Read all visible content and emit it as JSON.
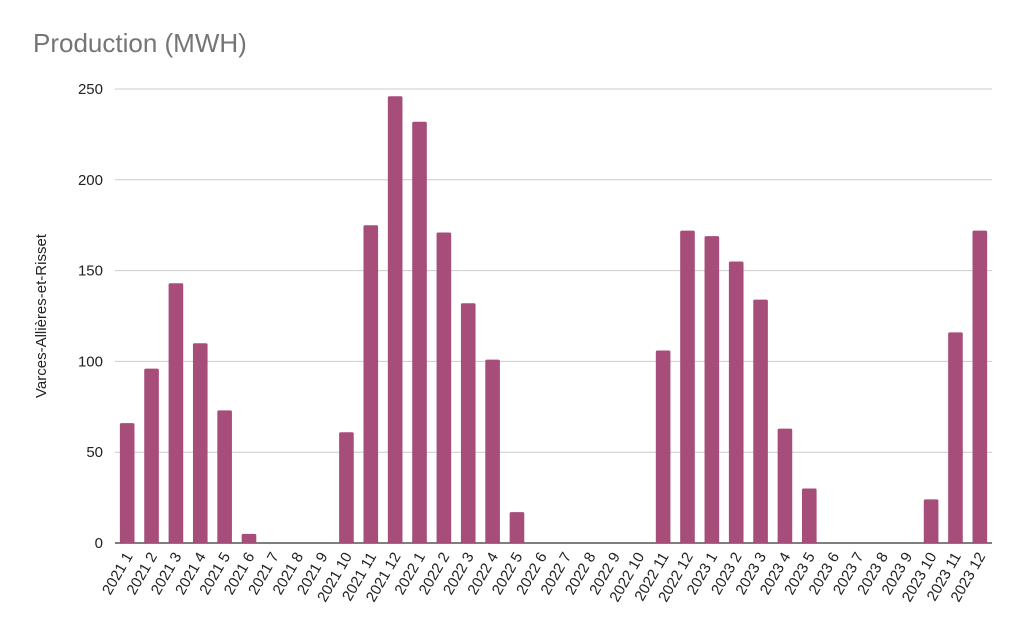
{
  "chart_data": {
    "type": "bar",
    "title": "Production (MWH)",
    "xlabel": "",
    "ylabel": "Varces-Allières-et-Risset",
    "ylim": [
      0,
      250
    ],
    "yticks": [
      0,
      50,
      100,
      150,
      200,
      250
    ],
    "grid": true,
    "bar_color": "#a64d79",
    "categories": [
      "2021 1",
      "2021 2",
      "2021 3",
      "2021 4",
      "2021 5",
      "2021 6",
      "2021 7",
      "2021 8",
      "2021 9",
      "2021 10",
      "2021 11",
      "2021 12",
      "2022 1",
      "2022 2",
      "2022 3",
      "2022 4",
      "2022 5",
      "2022 6",
      "2022 7",
      "2022 8",
      "2022 9",
      "2022 10",
      "2022 11",
      "2022 12",
      "2023 1",
      "2023 2",
      "2023 3",
      "2023 4",
      "2023 5",
      "2023 6",
      "2023 7",
      "2023 8",
      "2023 9",
      "2023 10",
      "2023 11",
      "2023 12"
    ],
    "values": [
      66,
      96,
      143,
      110,
      73,
      5,
      0,
      0,
      0,
      61,
      175,
      246,
      232,
      171,
      132,
      101,
      17,
      0,
      0,
      0,
      0,
      0,
      106,
      172,
      169,
      155,
      134,
      63,
      30,
      0,
      0,
      0,
      0,
      24,
      116,
      172
    ]
  }
}
